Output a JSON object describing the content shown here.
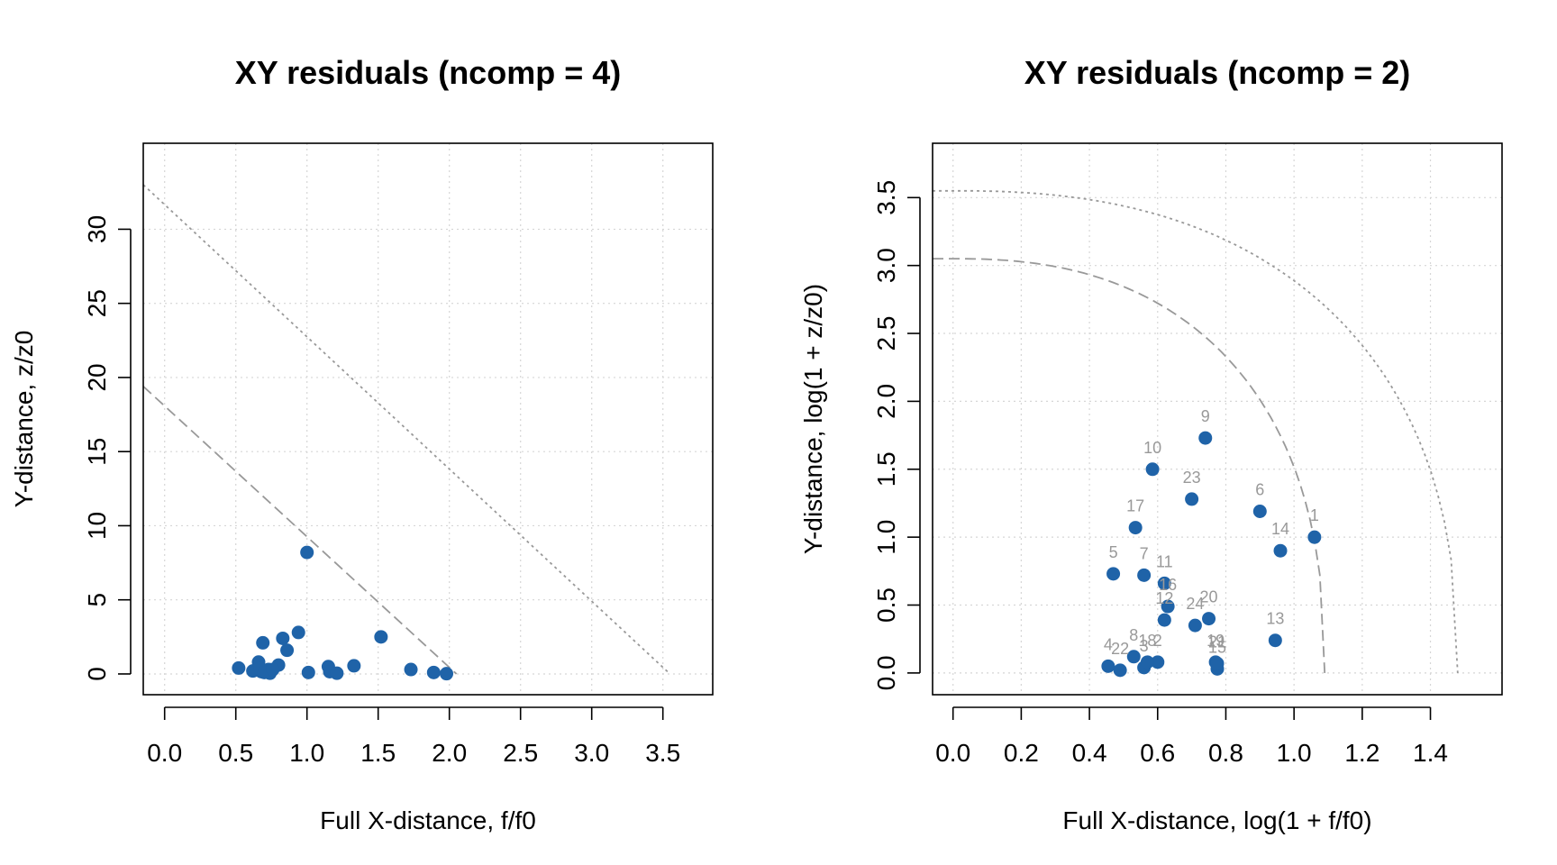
{
  "colors": {
    "points": "#1f63a8",
    "point_labels": "#999999",
    "grid": "#d6d6d6",
    "limit_lines": "#999999"
  },
  "chart_data": [
    {
      "type": "scatter",
      "title": "XY residuals (ncomp = 4)",
      "xlabel": "Full X-distance, f/f0",
      "ylabel": "Y-distance, z/z0",
      "xlim": [
        -0.15,
        3.85
      ],
      "ylim": [
        -1.4,
        35.8
      ],
      "x_ticks": [
        0.0,
        0.5,
        1.0,
        1.5,
        2.0,
        2.5,
        3.0,
        3.5
      ],
      "x_tick_labels": [
        "0.0",
        "0.5",
        "1.0",
        "1.5",
        "2.0",
        "2.5",
        "3.0",
        "3.5"
      ],
      "y_ticks": [
        0,
        5,
        10,
        15,
        20,
        25,
        30
      ],
      "y_tick_labels": [
        "0",
        "5",
        "10",
        "15",
        "20",
        "25",
        "30"
      ],
      "grid": true,
      "limit_lines": [
        {
          "style": "dashed",
          "points": [
            [
              -0.15,
              19.4
            ],
            [
              2.05,
              0
            ]
          ]
        },
        {
          "style": "dotted",
          "points": [
            [
              -0.15,
              33.0
            ],
            [
              3.55,
              0
            ]
          ]
        }
      ],
      "points": [
        {
          "x": 1.0,
          "y": 8.2
        },
        {
          "x": 0.94,
          "y": 2.8
        },
        {
          "x": 1.52,
          "y": 2.5
        },
        {
          "x": 0.83,
          "y": 2.4
        },
        {
          "x": 0.69,
          "y": 2.1
        },
        {
          "x": 0.86,
          "y": 1.6
        },
        {
          "x": 0.66,
          "y": 0.8
        },
        {
          "x": 0.8,
          "y": 0.6
        },
        {
          "x": 1.15,
          "y": 0.5
        },
        {
          "x": 1.33,
          "y": 0.55
        },
        {
          "x": 0.52,
          "y": 0.4
        },
        {
          "x": 0.73,
          "y": 0.3
        },
        {
          "x": 1.73,
          "y": 0.3
        },
        {
          "x": 0.62,
          "y": 0.2
        },
        {
          "x": 0.68,
          "y": 0.15
        },
        {
          "x": 1.16,
          "y": 0.15
        },
        {
          "x": 1.89,
          "y": 0.1
        },
        {
          "x": 1.01,
          "y": 0.1
        },
        {
          "x": 0.74,
          "y": 0.05
        },
        {
          "x": 1.21,
          "y": 0.05
        },
        {
          "x": 1.98,
          "y": 0.02
        },
        {
          "x": 0.67,
          "y": 0.35
        },
        {
          "x": 0.7,
          "y": 0.1
        },
        {
          "x": 0.76,
          "y": 0.3
        }
      ]
    },
    {
      "type": "scatter",
      "title": "XY residuals (ncomp = 2)",
      "xlabel": "Full X-distance, log(1 + f/f0)",
      "ylabel": "Y-distance, log(1 + z/z0)",
      "xlim": [
        -0.06,
        1.61
      ],
      "ylim": [
        -0.16,
        3.9
      ],
      "x_ticks": [
        0.0,
        0.2,
        0.4,
        0.6,
        0.8,
        1.0,
        1.2,
        1.4
      ],
      "x_tick_labels": [
        "0.0",
        "0.2",
        "0.4",
        "0.6",
        "0.8",
        "1.0",
        "1.2",
        "1.4"
      ],
      "y_ticks": [
        0.0,
        0.5,
        1.0,
        1.5,
        2.0,
        2.5,
        3.0,
        3.5
      ],
      "y_tick_labels": [
        "0.0",
        "0.5",
        "1.0",
        "1.5",
        "2.0",
        "2.5",
        "3.0",
        "3.5"
      ],
      "grid": true,
      "limit_curves": [
        {
          "style": "dashed",
          "x_intercept": 1.09,
          "y_intercept": 3.05
        },
        {
          "style": "dotted",
          "x_intercept": 1.48,
          "y_intercept": 3.55
        }
      ],
      "points": [
        {
          "label": "1",
          "x": 1.06,
          "y": 1.0
        },
        {
          "label": "2",
          "x": 0.6,
          "y": 0.08
        },
        {
          "label": "3",
          "x": 0.56,
          "y": 0.04
        },
        {
          "label": "4",
          "x": 0.455,
          "y": 0.05
        },
        {
          "label": "5",
          "x": 0.47,
          "y": 0.73
        },
        {
          "label": "6",
          "x": 0.9,
          "y": 1.19
        },
        {
          "label": "7",
          "x": 0.56,
          "y": 0.72
        },
        {
          "label": "8",
          "x": 0.53,
          "y": 0.12
        },
        {
          "label": "9",
          "x": 0.74,
          "y": 1.73
        },
        {
          "label": "10",
          "x": 0.585,
          "y": 1.5
        },
        {
          "label": "11",
          "x": 0.62,
          "y": 0.66
        },
        {
          "label": "12",
          "x": 0.62,
          "y": 0.39
        },
        {
          "label": "13",
          "x": 0.945,
          "y": 0.24
        },
        {
          "label": "14",
          "x": 0.96,
          "y": 0.9
        },
        {
          "label": "15",
          "x": 0.775,
          "y": 0.03
        },
        {
          "label": "16",
          "x": 0.63,
          "y": 0.49
        },
        {
          "label": "17",
          "x": 0.535,
          "y": 1.07
        },
        {
          "label": "18",
          "x": 0.57,
          "y": 0.08
        },
        {
          "label": "19",
          "x": 0.77,
          "y": 0.08
        },
        {
          "label": "20",
          "x": 0.75,
          "y": 0.4
        },
        {
          "label": "21",
          "x": 0.775,
          "y": 0.07
        },
        {
          "label": "22",
          "x": 0.49,
          "y": 0.02
        },
        {
          "label": "23",
          "x": 0.7,
          "y": 1.28
        },
        {
          "label": "24",
          "x": 0.71,
          "y": 0.35
        }
      ]
    }
  ]
}
